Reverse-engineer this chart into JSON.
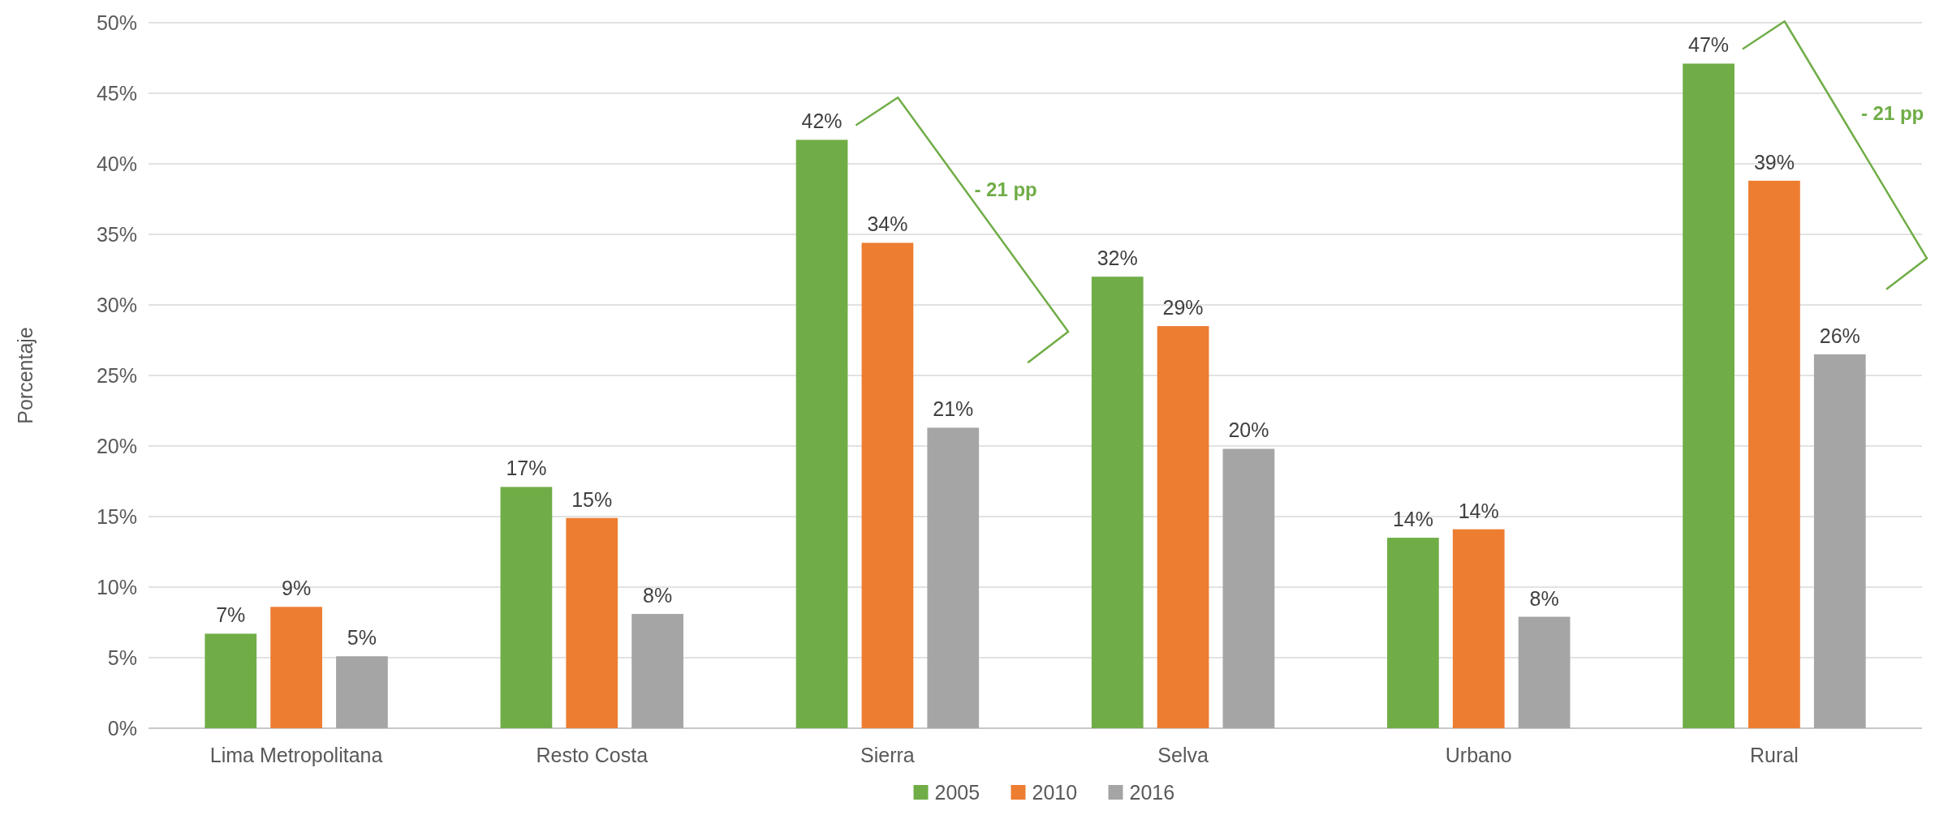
{
  "chart_data": {
    "type": "bar",
    "ylabel": "Porcentaje",
    "categories": [
      "Lima Metropolitana",
      "Resto Costa",
      "Sierra",
      "Selva",
      "Urbano",
      "Rural"
    ],
    "series": [
      {
        "name": "2005",
        "color": "#70ad47",
        "values": [
          6.7,
          17.1,
          41.7,
          32.0,
          13.5,
          47.1
        ],
        "value_labels": [
          "7%",
          "17%",
          "42%",
          "32%",
          "14%",
          "47%"
        ]
      },
      {
        "name": "2010",
        "color": "#ed7d31",
        "values": [
          8.6,
          14.9,
          34.4,
          28.5,
          14.1,
          38.8
        ],
        "value_labels": [
          "9%",
          "15%",
          "34%",
          "29%",
          "14%",
          "39%"
        ]
      },
      {
        "name": "2016",
        "color": "#a5a5a5",
        "values": [
          5.1,
          8.1,
          21.3,
          19.8,
          7.9,
          26.5
        ],
        "value_labels": [
          "5%",
          "8%",
          "21%",
          "20%",
          "8%",
          "26%"
        ]
      }
    ],
    "ylim": [
      0,
      50
    ],
    "yticks": [
      {
        "value": 0,
        "label": "0%"
      },
      {
        "value": 5,
        "label": "5%"
      },
      {
        "value": 10,
        "label": "10%"
      },
      {
        "value": 15,
        "label": "15%"
      },
      {
        "value": 20,
        "label": "20%"
      },
      {
        "value": 25,
        "label": "25%"
      },
      {
        "value": 30,
        "label": "30%"
      },
      {
        "value": 35,
        "label": "35%"
      },
      {
        "value": 40,
        "label": "40%"
      },
      {
        "value": 45,
        "label": "45%"
      },
      {
        "value": 50,
        "label": "50%"
      }
    ],
    "grid": "y",
    "legend": "bottom",
    "annotations": [
      "- 21 pp",
      "- 21 pp"
    ]
  }
}
